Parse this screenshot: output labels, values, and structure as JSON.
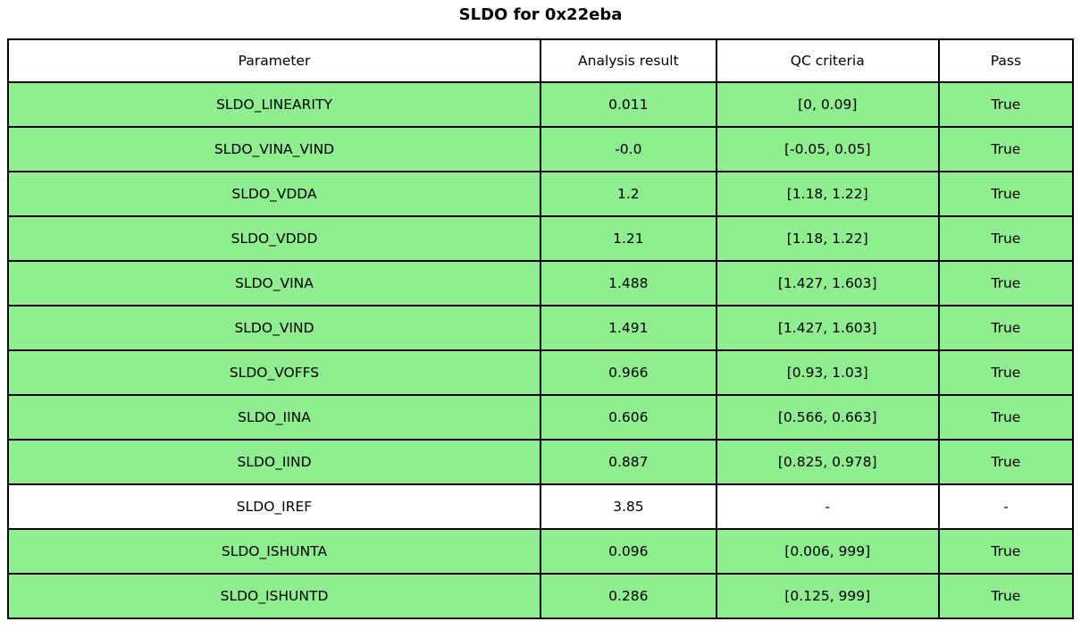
{
  "title": "SLDO for 0x22eba",
  "colors": {
    "pass_row": "#90EE90",
    "neutral_row": "#FFFFFF",
    "border": "#000000",
    "text": "#000000"
  },
  "table": {
    "columns": [
      "Parameter",
      "Analysis result",
      "QC criteria",
      "Pass"
    ],
    "rows": [
      {
        "parameter": "SLDO_LINEARITY",
        "result": "0.011",
        "criteria": "[0, 0.09]",
        "pass": "True",
        "status": "pass"
      },
      {
        "parameter": "SLDO_VINA_VIND",
        "result": "-0.0",
        "criteria": "[-0.05, 0.05]",
        "pass": "True",
        "status": "pass"
      },
      {
        "parameter": "SLDO_VDDA",
        "result": "1.2",
        "criteria": "[1.18, 1.22]",
        "pass": "True",
        "status": "pass"
      },
      {
        "parameter": "SLDO_VDDD",
        "result": "1.21",
        "criteria": "[1.18, 1.22]",
        "pass": "True",
        "status": "pass"
      },
      {
        "parameter": "SLDO_VINA",
        "result": "1.488",
        "criteria": "[1.427, 1.603]",
        "pass": "True",
        "status": "pass"
      },
      {
        "parameter": "SLDO_VIND",
        "result": "1.491",
        "criteria": "[1.427, 1.603]",
        "pass": "True",
        "status": "pass"
      },
      {
        "parameter": "SLDO_VOFFS",
        "result": "0.966",
        "criteria": "[0.93, 1.03]",
        "pass": "True",
        "status": "pass"
      },
      {
        "parameter": "SLDO_IINA",
        "result": "0.606",
        "criteria": "[0.566, 0.663]",
        "pass": "True",
        "status": "pass"
      },
      {
        "parameter": "SLDO_IIND",
        "result": "0.887",
        "criteria": "[0.825, 0.978]",
        "pass": "True",
        "status": "pass"
      },
      {
        "parameter": "SLDO_IREF",
        "result": "3.85",
        "criteria": "-",
        "pass": "-",
        "status": "neutral"
      },
      {
        "parameter": "SLDO_ISHUNTA",
        "result": "0.096",
        "criteria": "[0.006, 999]",
        "pass": "True",
        "status": "pass"
      },
      {
        "parameter": "SLDO_ISHUNTD",
        "result": "0.286",
        "criteria": "[0.125, 999]",
        "pass": "True",
        "status": "pass"
      }
    ]
  }
}
